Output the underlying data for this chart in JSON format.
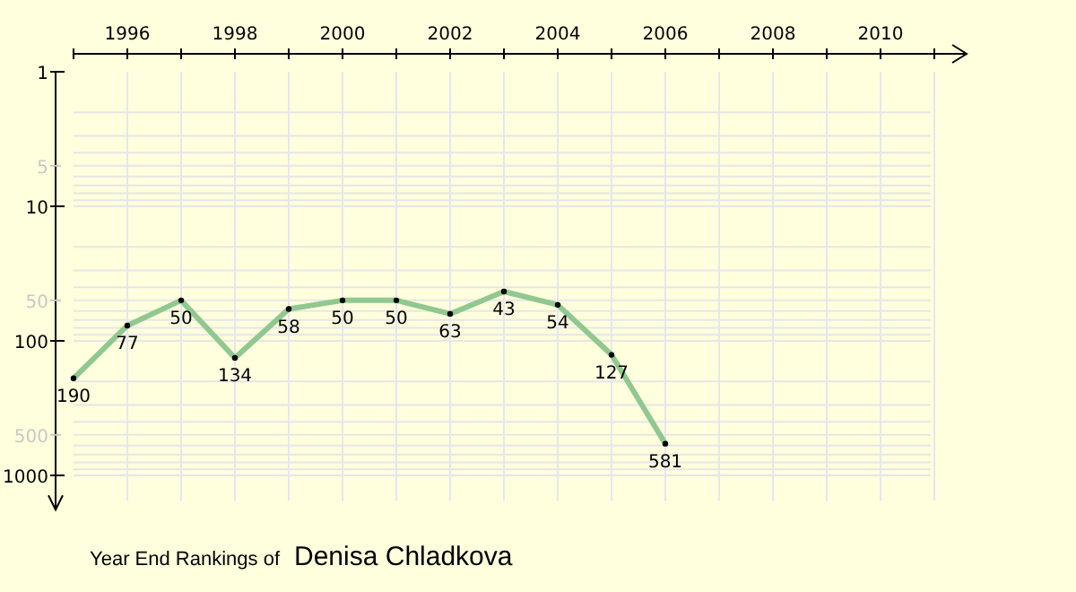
{
  "chart_data": {
    "type": "line",
    "title": "Year End Rankings of",
    "subtitle": "Denisa Chladkova",
    "x": [
      1995,
      1996,
      1997,
      1998,
      1999,
      2000,
      2001,
      2002,
      2003,
      2004,
      2005,
      2006
    ],
    "series": [
      {
        "color": "#90c890",
        "values": [
          190,
          77,
          50,
          134,
          58,
          50,
          50,
          63,
          43,
          54,
          127,
          581
        ]
      }
    ],
    "xlim": [
      1995,
      2011.6
    ],
    "xticks": [
      {
        "value": 1995,
        "label": null
      },
      1996,
      {
        "value": 1997,
        "label": null
      },
      1998,
      {
        "value": 1999,
        "label": null
      },
      2000,
      {
        "value": 2001,
        "label": null
      },
      2002,
      {
        "value": 2003,
        "label": null
      },
      2004,
      {
        "value": 2005,
        "label": null
      },
      2006,
      {
        "value": 2007,
        "label": null
      },
      2008,
      {
        "value": 2009,
        "label": null
      },
      2010,
      {
        "value": 2011,
        "label": null
      }
    ],
    "ylim": [
      1800,
      1
    ],
    "log": true,
    "yticks": [
      1,
      5,
      10,
      50,
      100,
      500,
      1000
    ],
    "grid": true,
    "marker": "circle",
    "data_labels": true
  }
}
